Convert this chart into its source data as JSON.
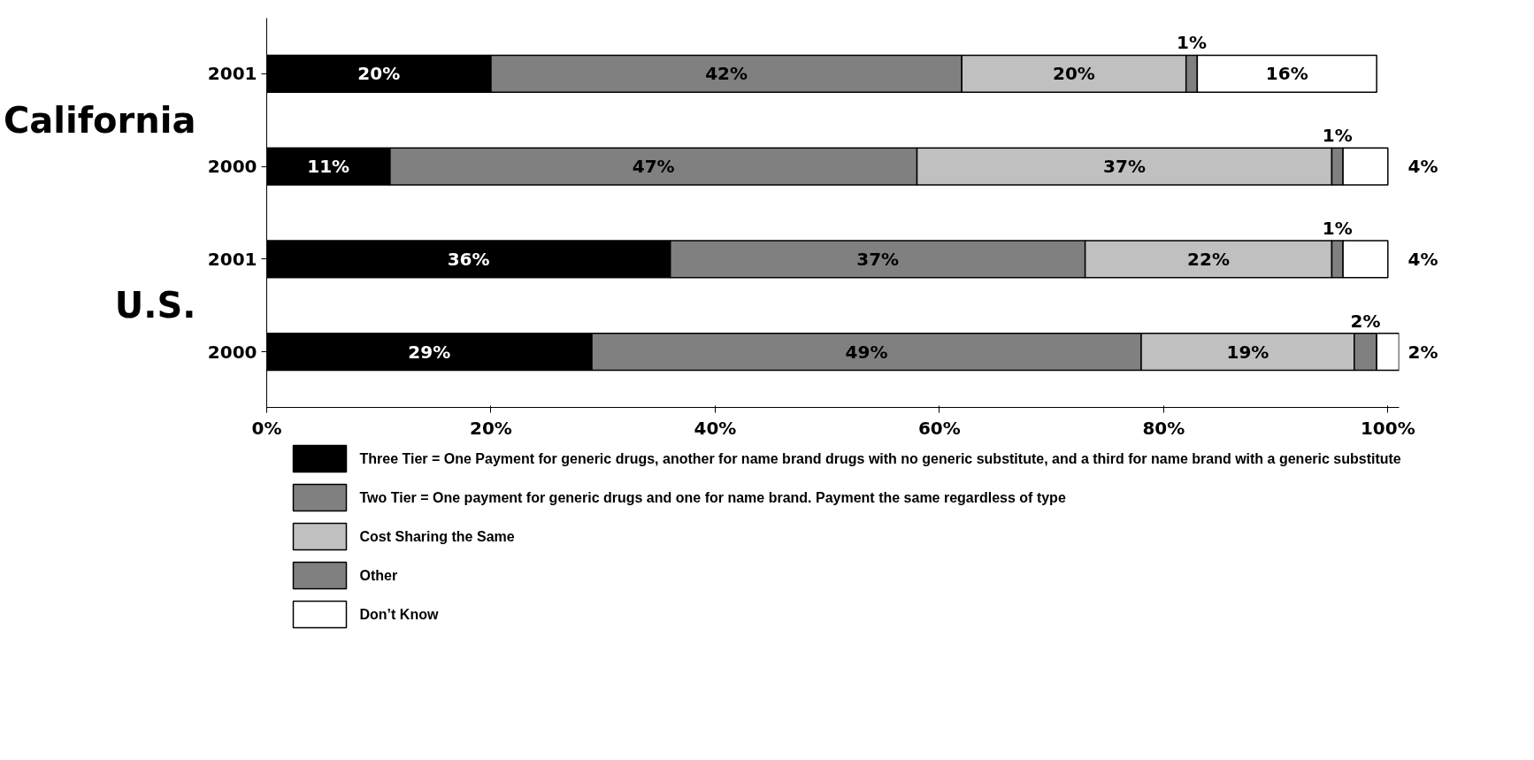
{
  "chart_data": {
    "type": "bar",
    "orientation": "horizontal",
    "stacked": true,
    "categories": [
      "2001",
      "2000",
      "2001",
      "2000"
    ],
    "series": [
      {
        "name": "Three Tier = One Payment for generic drugs, another for name brand drugs with no generic substitute, and a third for name brand with a generic substitute",
        "color": "#000000",
        "values": [
          20,
          11,
          36,
          29
        ],
        "value_labels": [
          "20%",
          "11%",
          "36%",
          "29%"
        ]
      },
      {
        "name": "Two Tier = One payment for generic drugs and one for name brand.  Payment the same regardless of type",
        "color": "#808080",
        "values": [
          42,
          47,
          37,
          49
        ],
        "value_labels": [
          "42%",
          "47%",
          "37%",
          "49%"
        ]
      },
      {
        "name": "Cost Sharing the Same",
        "color": "#c0c0c0",
        "values": [
          20,
          37,
          22,
          19
        ],
        "value_labels": [
          "20%",
          "37%",
          "22%",
          "19%"
        ]
      },
      {
        "name": "Other",
        "color": "#808080",
        "values": [
          1,
          1,
          1,
          2
        ],
        "value_labels": [
          "1%",
          "1%",
          "1%",
          "2%"
        ]
      },
      {
        "name": "Don’t Know",
        "color": "#ffffff",
        "values": [
          16,
          4,
          4,
          2
        ],
        "value_labels": [
          "16%",
          "4%",
          "4%",
          "2%"
        ]
      }
    ],
    "annotations": [
      "California",
      "U.S."
    ],
    "xlim": [
      0,
      101
    ],
    "xticks": [
      {
        "value": 0,
        "label": "0%"
      },
      {
        "value": 20,
        "label": "20%"
      },
      {
        "value": 40,
        "label": "40%"
      },
      {
        "value": 60,
        "label": "60%"
      },
      {
        "value": 80,
        "label": "80%"
      },
      {
        "value": 100,
        "label": "100%"
      }
    ],
    "grid": false,
    "legend": "bottom"
  }
}
